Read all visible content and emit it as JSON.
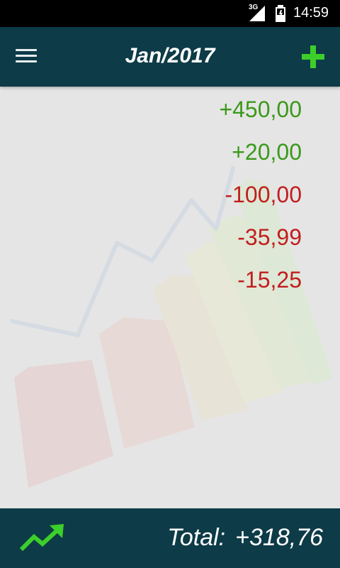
{
  "status_bar": {
    "network_label": "3G",
    "clock": "14:59",
    "icons": [
      "signal-icon",
      "battery-icon"
    ]
  },
  "app_bar": {
    "title": "Jan/2017",
    "menu_icon": "hamburger-menu-icon",
    "add_icon": "plus-icon",
    "accent_color": "#3ccf2a",
    "background_color": "#0d3b47"
  },
  "transactions": [
    {
      "amount": "+450,00",
      "type": "positive"
    },
    {
      "amount": "+20,00",
      "type": "positive"
    },
    {
      "amount": "-100,00",
      "type": "negative"
    },
    {
      "amount": "-35,99",
      "type": "negative"
    },
    {
      "amount": "-15,25",
      "type": "negative"
    }
  ],
  "colors": {
    "positive": "#3a9a1a",
    "negative": "#c21e1e"
  },
  "footer": {
    "trend_icon": "trending-up-icon",
    "total_label": "Total:",
    "total_value": "+318,76"
  }
}
